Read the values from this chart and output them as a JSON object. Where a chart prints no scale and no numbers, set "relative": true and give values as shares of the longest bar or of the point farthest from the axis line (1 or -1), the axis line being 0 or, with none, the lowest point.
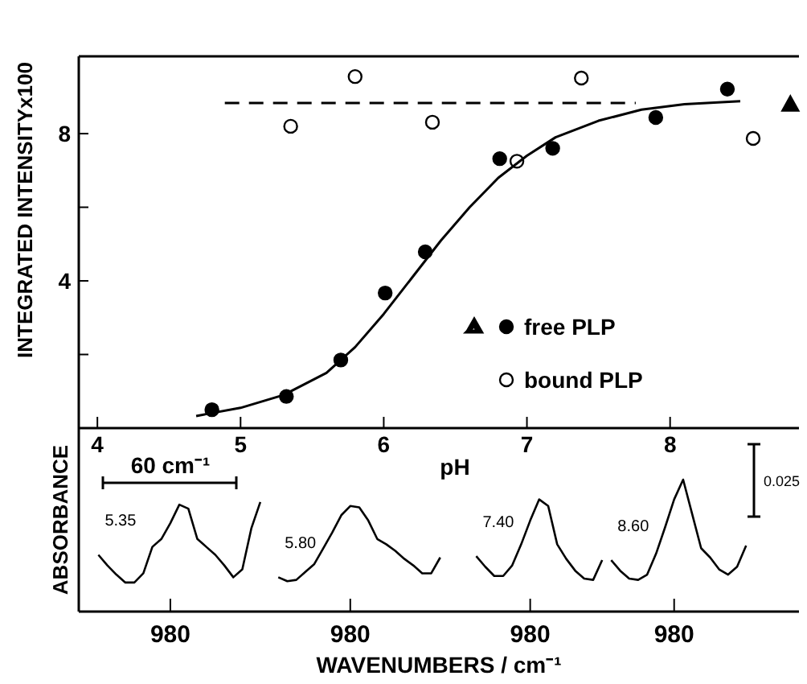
{
  "chart_data": [
    {
      "type": "scatter",
      "xlabel": "pH",
      "ylabel": "INTEGRATED INTENSITYx100",
      "xlim": [
        3.87,
        8.9
      ],
      "ylim": [
        0,
        10.1
      ],
      "xticks": [
        4,
        5,
        6,
        7,
        8
      ],
      "yticks": [
        {
          "value": 2,
          "label": null
        },
        4,
        {
          "value": 6,
          "label": null
        },
        8
      ],
      "legend": "bottom right",
      "series": [
        {
          "name": "free PLP",
          "type": "scatter",
          "marker": "circle",
          "color": "#000000",
          "x": [
            4.8,
            5.32,
            5.7,
            6.01,
            6.29,
            6.81,
            7.18,
            7.9,
            8.4
          ],
          "values": [
            0.5,
            0.86,
            1.85,
            3.67,
            4.79,
            7.32,
            7.6,
            8.44,
            9.21
          ]
        },
        {
          "type": "scatter",
          "marker": "triangle",
          "color": "#000000",
          "x": [
            8.84
          ],
          "values": [
            8.8
          ]
        },
        {
          "name": "bound PLP",
          "type": "scatter",
          "marker": "circle",
          "color": "#ffffff",
          "x": [
            5.35,
            5.8,
            6.34,
            6.93,
            7.38,
            8.58
          ],
          "values": [
            8.2,
            9.55,
            8.31,
            7.25,
            9.51,
            7.87
          ]
        },
        {
          "type": "line",
          "marker": "none",
          "line_style": "solid",
          "color": "#000000",
          "x": [
            4.69,
            5.0,
            5.3,
            5.6,
            5.8,
            6.0,
            6.2,
            6.4,
            6.6,
            6.8,
            7.0,
            7.2,
            7.5,
            7.8,
            8.1,
            8.49
          ],
          "values": [
            0.33,
            0.55,
            0.9,
            1.5,
            2.2,
            3.1,
            4.1,
            5.1,
            6.0,
            6.8,
            7.4,
            7.9,
            8.35,
            8.65,
            8.8,
            8.88
          ]
        },
        {
          "type": "line",
          "marker": "none",
          "line_style": "dashed",
          "color": "#000000",
          "x": [
            4.89,
            7.76
          ],
          "values": [
            8.83,
            8.83
          ]
        }
      ]
    },
    {
      "type": "line",
      "relative": true,
      "xlabel": "WAVENUMBERS / cm⁻¹",
      "ylabel": "ABSORBANCE",
      "annotations": [
        "60 cm⁻¹",
        "0.025"
      ],
      "categories": [
        null,
        null,
        null,
        null,
        null,
        null,
        null,
        null,
        "980",
        null,
        null,
        null,
        null,
        null,
        null,
        null,
        null,
        null,
        null,
        null,
        null,
        null,
        null,
        null,
        null,
        null,
        null,
        null,
        "980",
        null,
        null,
        null,
        null,
        null,
        null,
        null,
        null,
        null,
        null,
        null,
        null,
        null,
        null,
        null,
        null,
        null,
        null,
        null,
        "980",
        null,
        null,
        null,
        null,
        null,
        null,
        null,
        null,
        null,
        null,
        null,
        null,
        null,
        null,
        null,
        "980",
        null,
        null,
        null,
        null,
        null,
        null,
        null,
        null,
        null,
        null,
        null,
        null,
        null
      ],
      "series": [
        {
          "name": "5.35",
          "color": "#000000",
          "values": [
            0.43,
            0.35,
            0.28,
            0.22,
            0.22,
            0.29,
            0.49,
            0.55,
            0.67,
            0.81,
            0.78,
            0.55,
            0.49,
            0.43,
            0.35,
            0.26,
            0.32,
            0.63,
            0.83,
            null,
            null,
            null,
            null,
            null,
            null,
            null,
            null,
            null,
            null,
            null,
            null,
            null,
            null,
            null,
            null,
            null,
            null,
            null,
            null,
            null,
            null,
            null,
            null,
            null,
            null,
            null,
            null,
            null,
            null,
            null,
            null,
            null,
            null,
            null,
            null,
            null,
            null,
            null,
            null,
            null,
            null,
            null,
            null,
            null,
            null,
            null,
            null,
            null,
            null,
            null,
            null,
            null,
            null,
            null,
            null,
            null,
            null,
            null
          ]
        },
        {
          "name": "5.80",
          "color": "#000000",
          "values": [
            null,
            null,
            null,
            null,
            null,
            null,
            null,
            null,
            null,
            null,
            null,
            null,
            null,
            null,
            null,
            null,
            null,
            null,
            null,
            null,
            0.26,
            0.23,
            0.24,
            0.3,
            0.36,
            0.48,
            0.6,
            0.73,
            0.8,
            0.79,
            0.69,
            0.55,
            0.51,
            0.46,
            0.4,
            0.35,
            0.29,
            0.29,
            0.41,
            null,
            null,
            null,
            null,
            null,
            null,
            null,
            null,
            null,
            null,
            null,
            null,
            null,
            null,
            null,
            null,
            null,
            null,
            null,
            null,
            null,
            null,
            null,
            null,
            null,
            null,
            null,
            null,
            null,
            null,
            null,
            null,
            null,
            null,
            null,
            null,
            null,
            null,
            null
          ]
        },
        {
          "name": "7.40",
          "color": "#000000",
          "values": [
            null,
            null,
            null,
            null,
            null,
            null,
            null,
            null,
            null,
            null,
            null,
            null,
            null,
            null,
            null,
            null,
            null,
            null,
            null,
            null,
            null,
            null,
            null,
            null,
            null,
            null,
            null,
            null,
            null,
            null,
            null,
            null,
            null,
            null,
            null,
            null,
            null,
            null,
            null,
            null,
            null,
            null,
            0.42,
            0.34,
            0.27,
            0.27,
            0.35,
            0.51,
            0.69,
            0.85,
            0.8,
            0.51,
            0.4,
            0.31,
            0.25,
            0.24,
            0.39,
            null,
            null,
            null,
            null,
            null,
            null,
            null,
            null,
            null,
            null,
            null,
            null,
            null,
            null,
            null,
            null,
            null,
            null,
            null,
            null,
            null
          ]
        },
        {
          "name": "8.60",
          "color": "#000000",
          "values": [
            null,
            null,
            null,
            null,
            null,
            null,
            null,
            null,
            null,
            null,
            null,
            null,
            null,
            null,
            null,
            null,
            null,
            null,
            null,
            null,
            null,
            null,
            null,
            null,
            null,
            null,
            null,
            null,
            null,
            null,
            null,
            null,
            null,
            null,
            null,
            null,
            null,
            null,
            null,
            null,
            null,
            null,
            null,
            null,
            null,
            null,
            null,
            null,
            null,
            null,
            null,
            null,
            null,
            null,
            null,
            null,
            null,
            0.39,
            0.31,
            0.25,
            0.24,
            0.28,
            0.44,
            0.64,
            0.85,
            1.0,
            0.74,
            0.48,
            0.41,
            0.32,
            0.28,
            0.34,
            0.5,
            null,
            null,
            null,
            null,
            null
          ]
        }
      ]
    }
  ]
}
